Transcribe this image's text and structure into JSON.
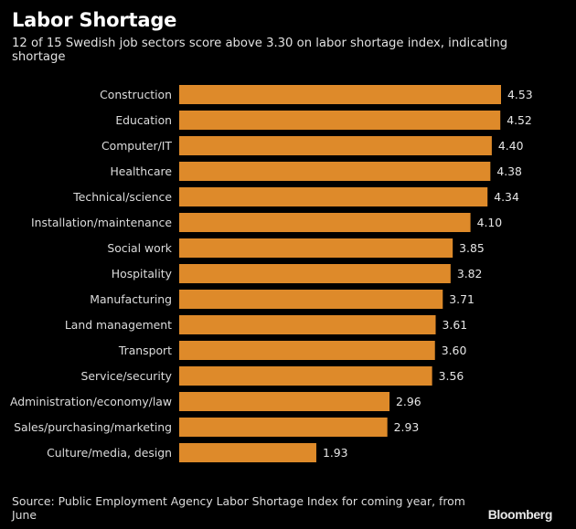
{
  "chart_data": {
    "type": "bar",
    "orientation": "horizontal",
    "title": "Labor Shortage",
    "subtitle": "12 of 15 Swedish job sectors score above 3.30 on labor shortage index, indicating shortage",
    "xlabel": "",
    "ylabel": "",
    "xlim": [
      0,
      4.53
    ],
    "grid": false,
    "bar_color": "#de8a2a",
    "categories": [
      "Construction",
      "Education",
      "Computer/IT",
      "Healthcare",
      "Technical/science",
      "Installation/maintenance",
      "Social work",
      "Hospitality",
      "Manufacturing",
      "Land management",
      "Transport",
      "Service/security",
      "Administration/economy/law",
      "Sales/purchasing/marketing",
      "Culture/media, design"
    ],
    "values": [
      4.53,
      4.52,
      4.4,
      4.38,
      4.34,
      4.1,
      3.85,
      3.82,
      3.71,
      3.61,
      3.6,
      3.56,
      2.96,
      2.93,
      1.93
    ],
    "value_labels": [
      "4.53",
      "4.52",
      "4.40",
      "4.38",
      "4.34",
      "4.10",
      "3.85",
      "3.82",
      "3.71",
      "3.61",
      "3.60",
      "3.56",
      "2.96",
      "2.93",
      "1.93"
    ],
    "source": "Source: Public Employment Agency Labor Shortage Index for coming year, from June",
    "brand": "Bloomberg"
  }
}
